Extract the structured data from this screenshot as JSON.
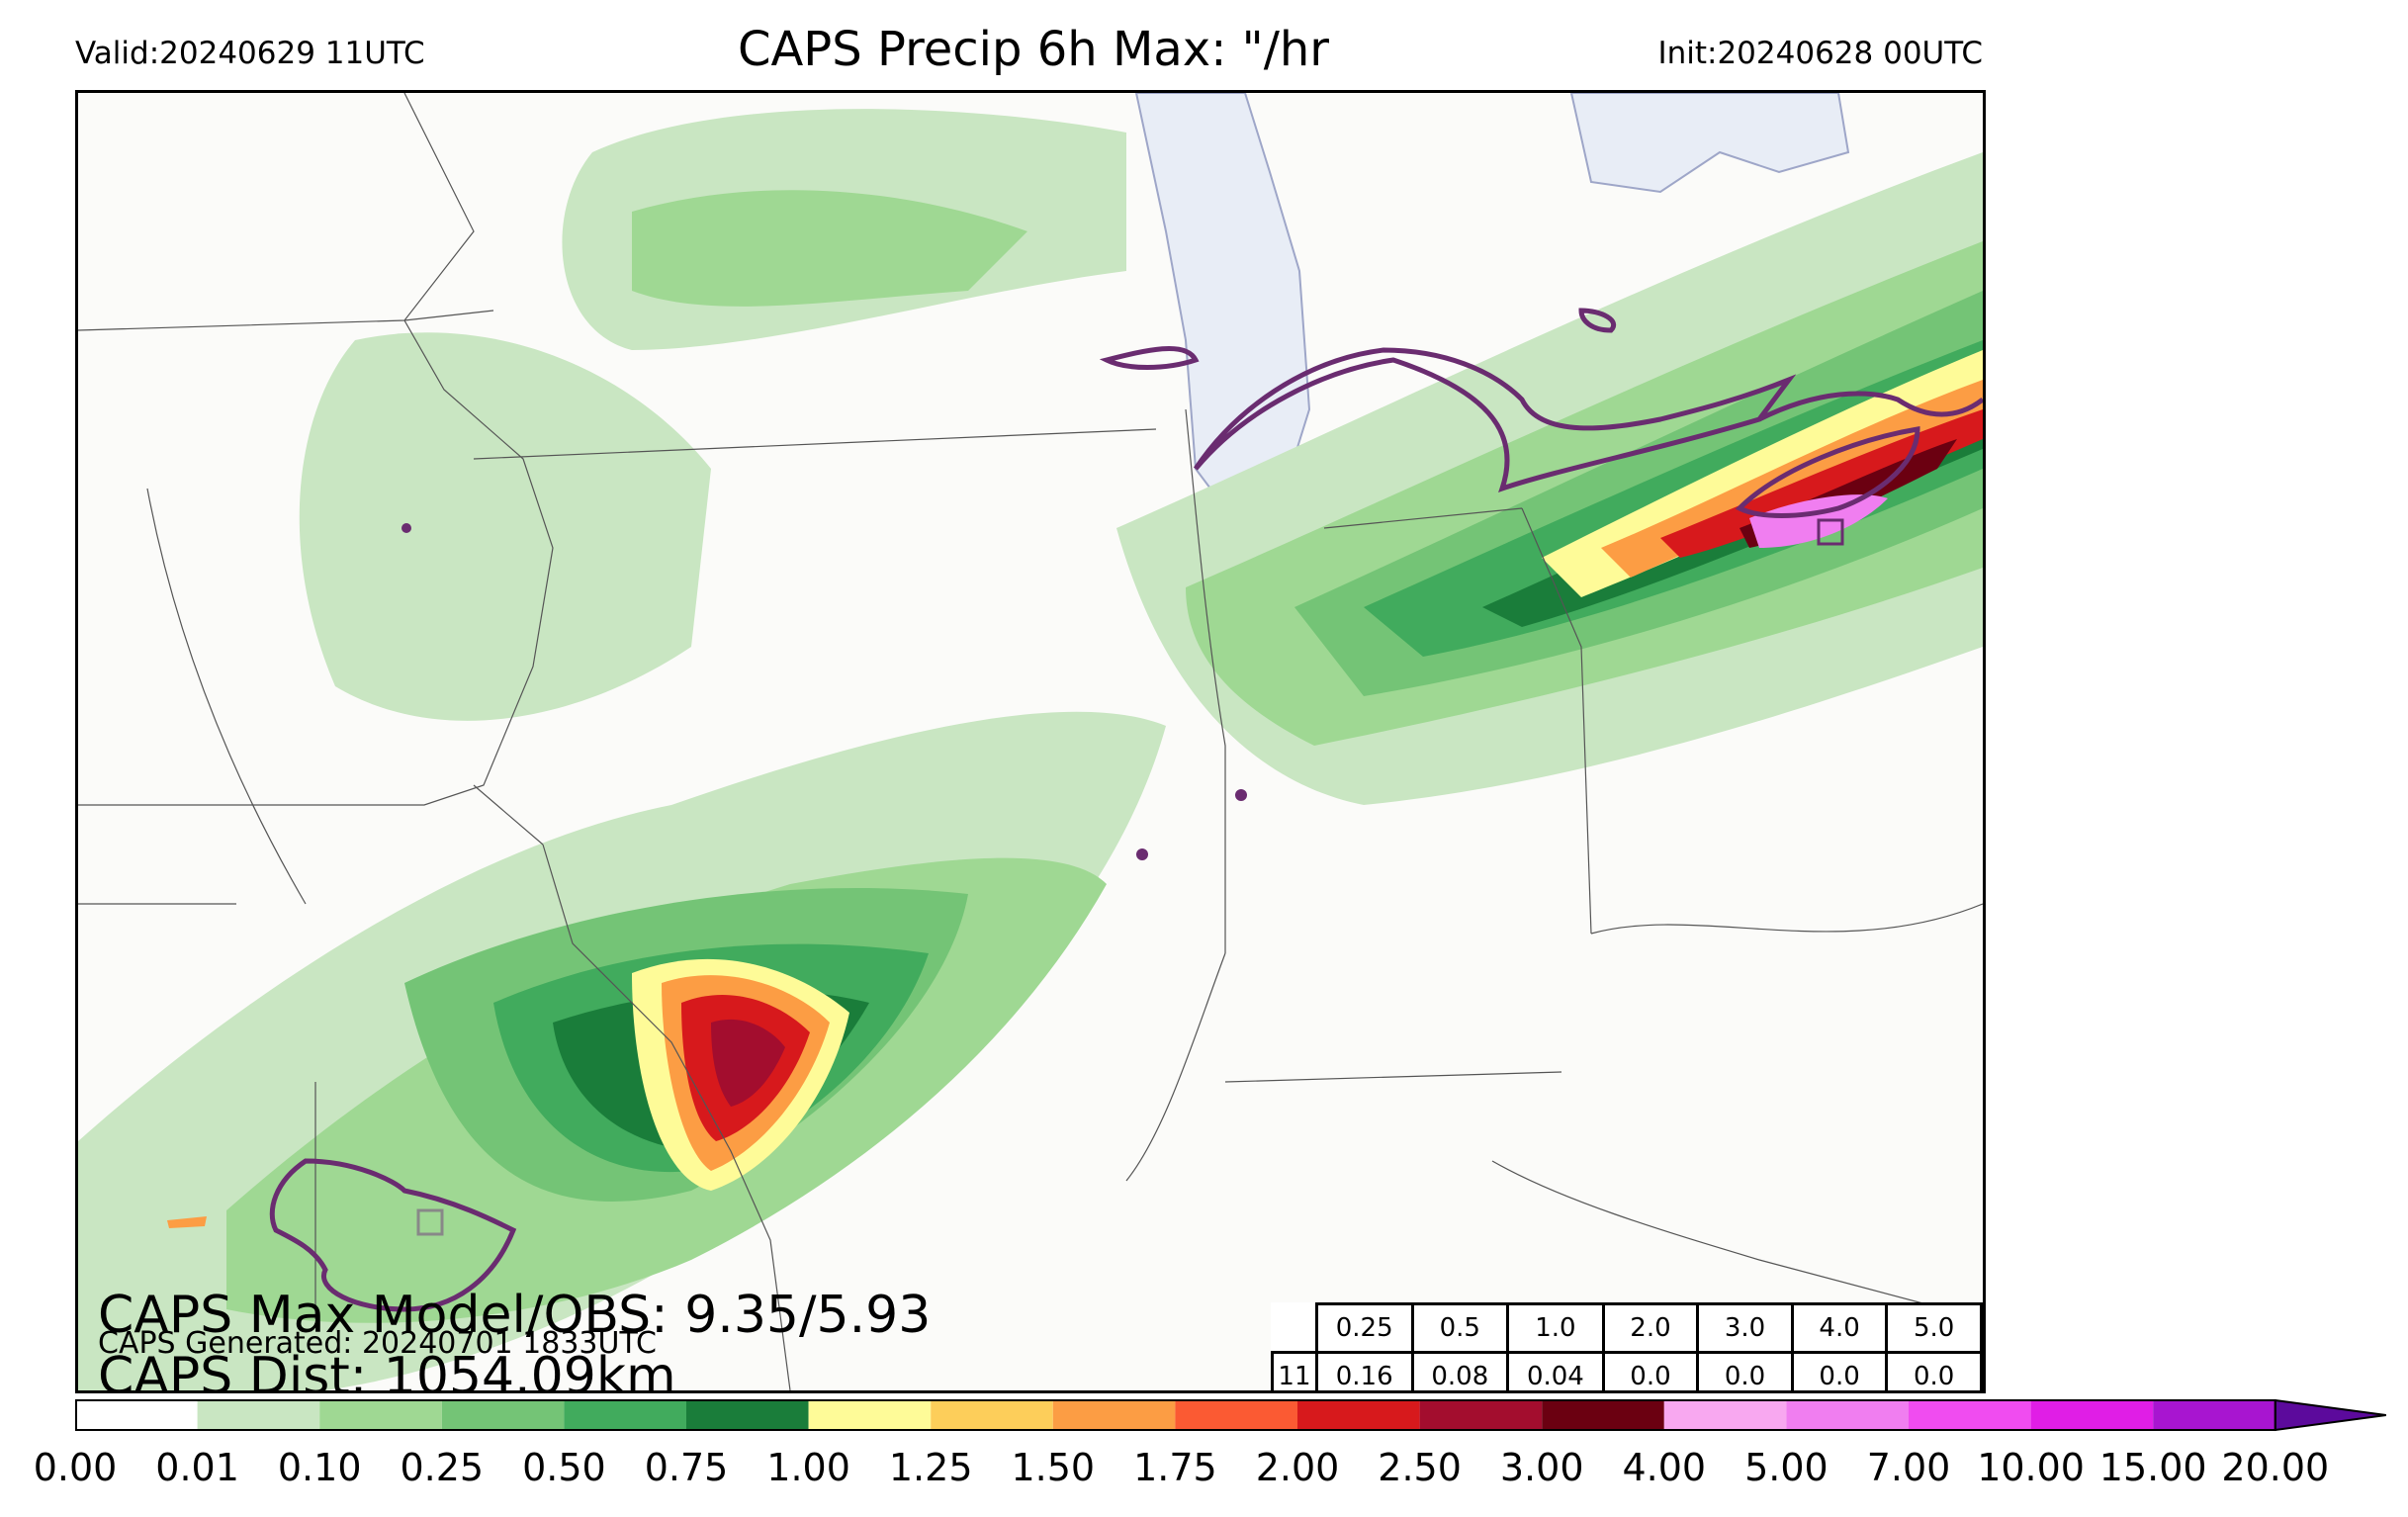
{
  "header": {
    "valid": "Valid:20240629 11UTC",
    "title": "CAPS Precip 6h Max: \"/hr",
    "init": "Init:20240628 00UTC"
  },
  "stats": {
    "max_model_obs": "CAPS Max Model/OBS: 9.35/5.93",
    "generated": "CAPS Generated: 20240701 1833UTC",
    "distance": "CAPS Dist: 1054.09km"
  },
  "threshold_table": {
    "thresholds": [
      "0.25",
      "0.5",
      "1.0",
      "2.0",
      "3.0",
      "4.0",
      "5.0"
    ],
    "row_label": "11",
    "values": [
      "0.16",
      "0.08",
      "0.04",
      "0.0",
      "0.0",
      "0.0",
      "0.0"
    ]
  },
  "colorbar": {
    "ticks": [
      "0.00",
      "0.01",
      "0.10",
      "0.25",
      "0.50",
      "0.75",
      "1.00",
      "1.25",
      "1.50",
      "1.75",
      "2.00",
      "2.50",
      "3.00",
      "4.00",
      "5.00",
      "7.00",
      "10.00",
      "15.00",
      "20.00"
    ],
    "colors": [
      "#ffffff",
      "#c9e6c2",
      "#9fd893",
      "#74c476",
      "#41ab5d",
      "#1a7d3a",
      "#fefb98",
      "#fdce5a",
      "#fc9d44",
      "#fb5a33",
      "#d7191c",
      "#a30d2e",
      "#6b0011",
      "#f8a8f0",
      "#f07ef0",
      "#f04cf0",
      "#e01ee6",
      "#a815d0"
    ],
    "extend_color": "#5c0a9c"
  },
  "map": {
    "outline_color": "#6a2c70",
    "lake_color": "#e8edf6",
    "max_obs_markers": 2
  }
}
